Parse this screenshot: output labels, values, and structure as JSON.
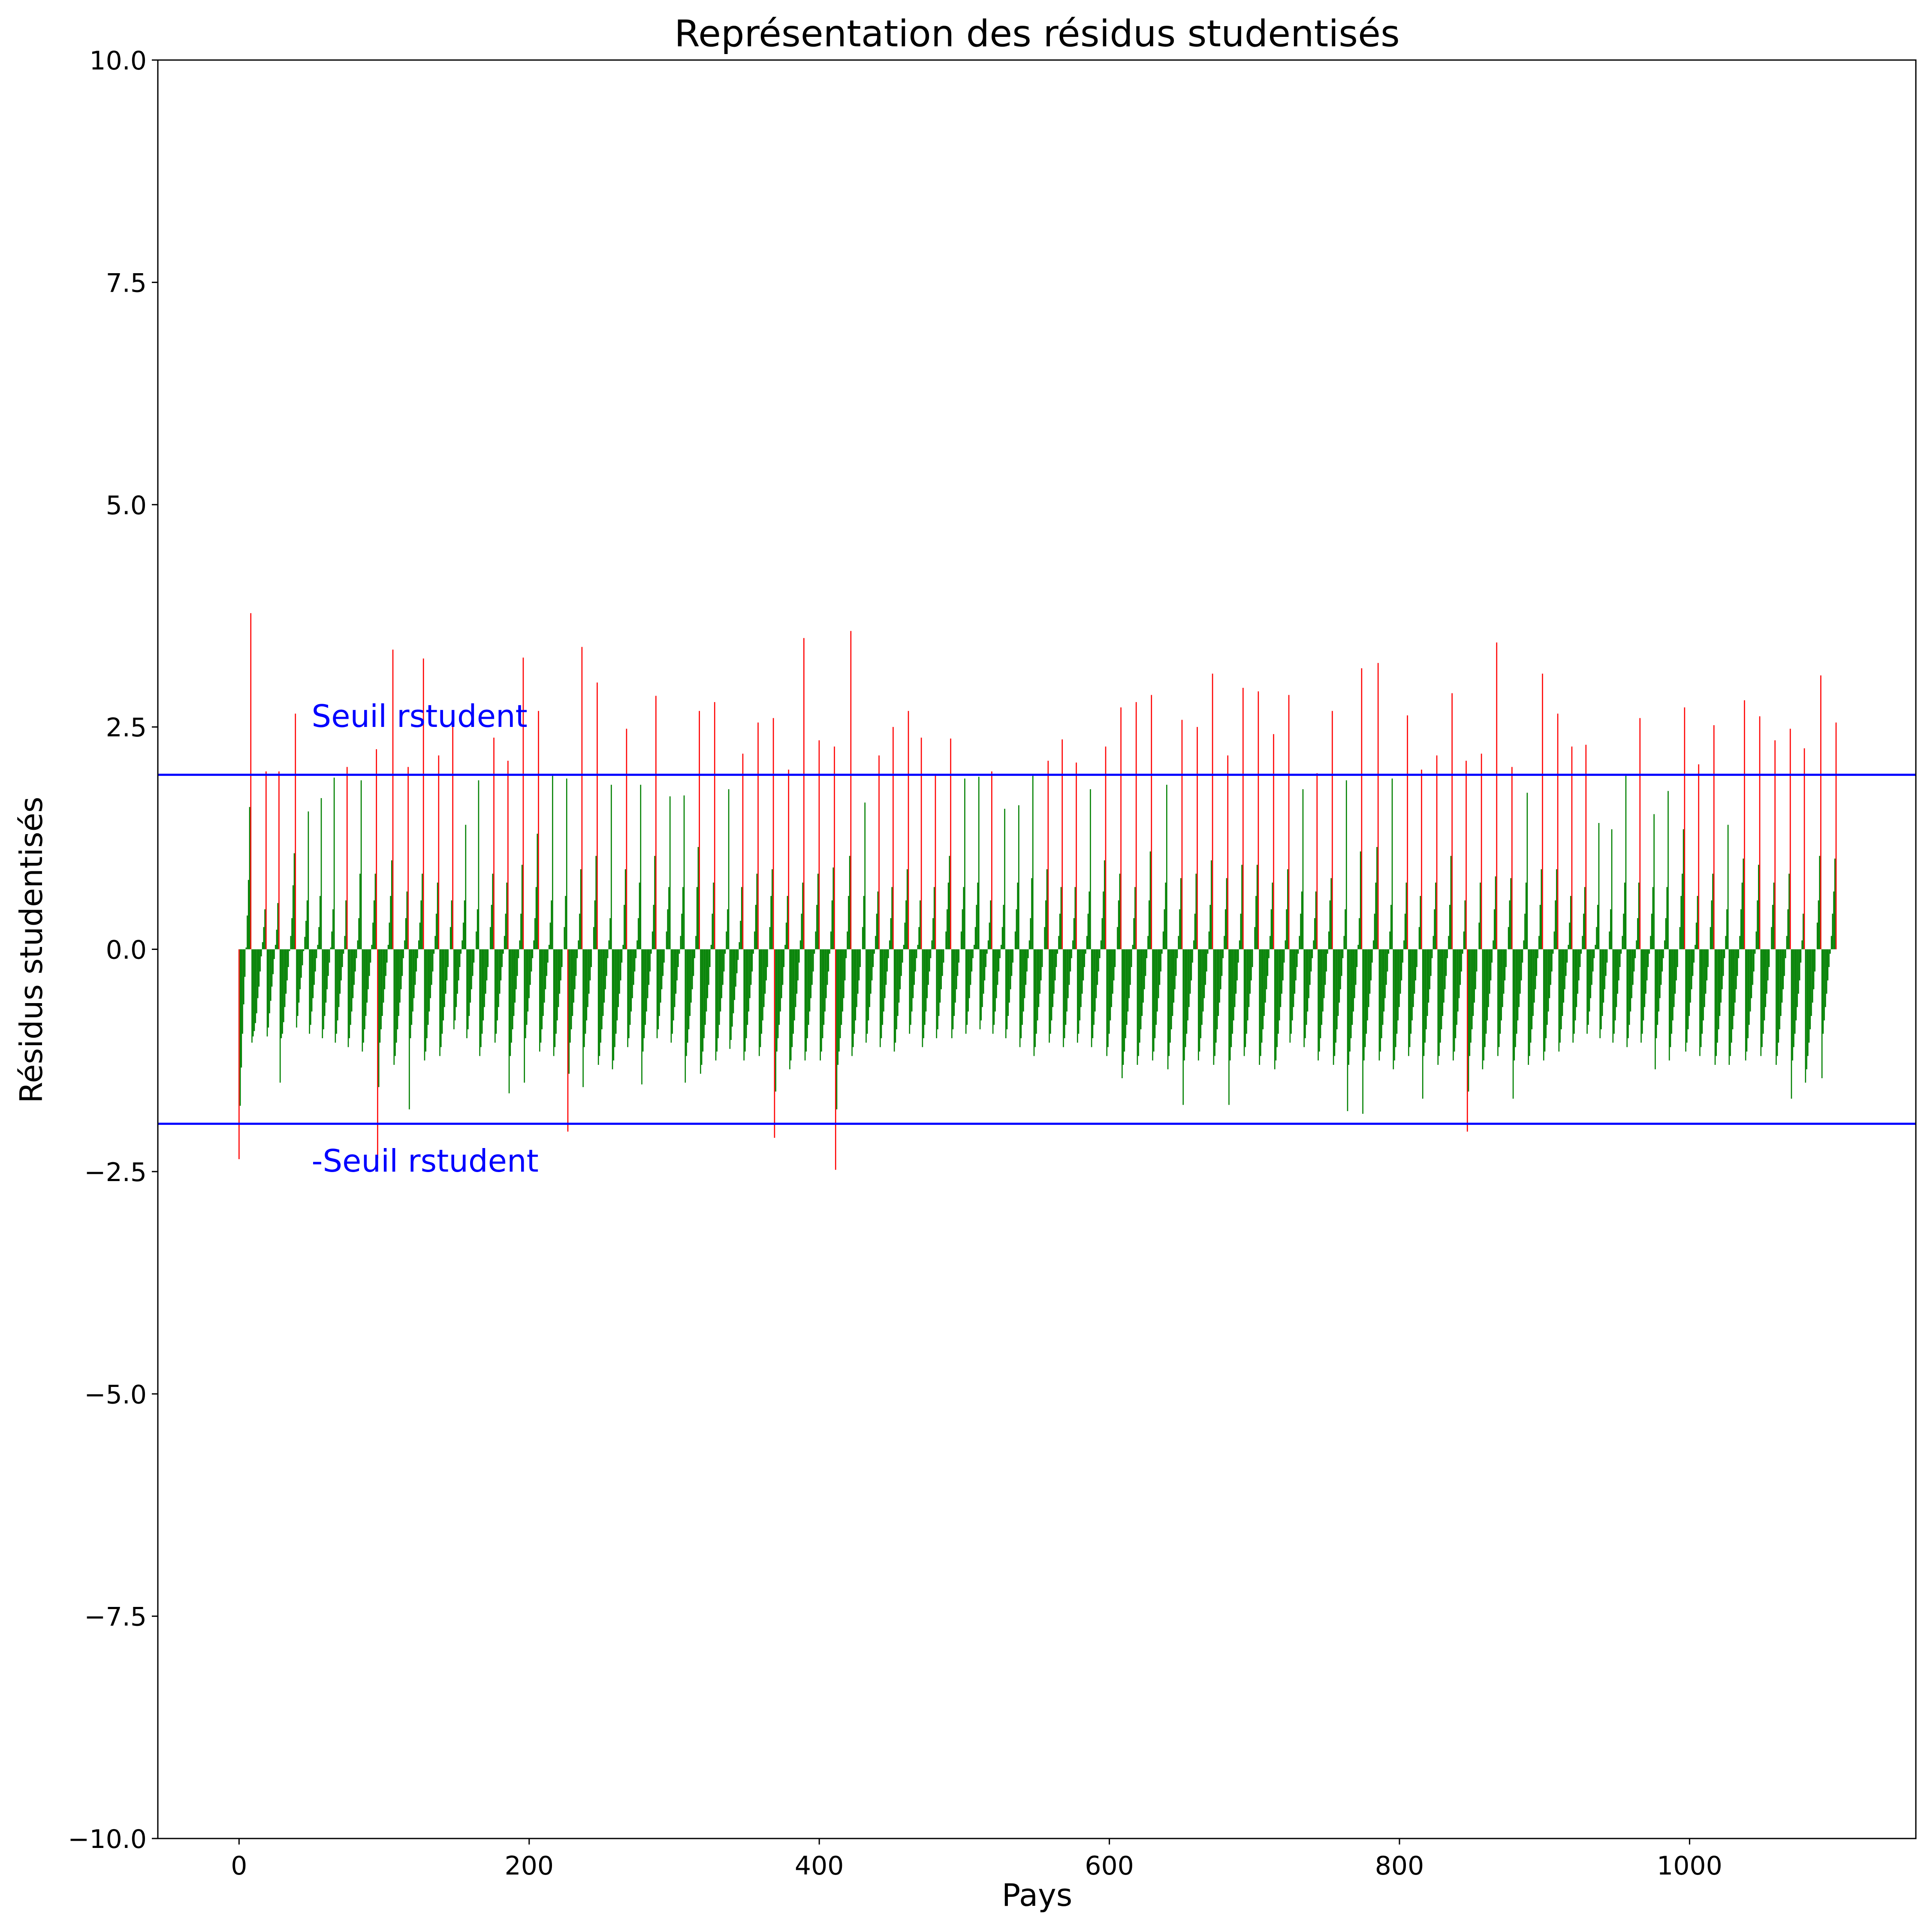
{
  "chart_data": {
    "type": "bar",
    "title": "Représentation des résidus studentisés",
    "xlabel": "Pays",
    "ylabel": "Résidus studentisés",
    "xlim": [
      -56,
      1156
    ],
    "ylim": [
      -10,
      10
    ],
    "xticks": [
      0,
      200,
      400,
      600,
      800,
      1000
    ],
    "xtick_labels": [
      "0",
      "200",
      "400",
      "600",
      "800",
      "1000"
    ],
    "yticks": [
      -10,
      -7.5,
      -5,
      -2.5,
      0,
      2.5,
      5,
      7.5,
      10
    ],
    "ytick_labels": [
      "−10.0",
      "−7.5",
      "−5.0",
      "−2.5",
      "0.0",
      "2.5",
      "5.0",
      "7.5",
      "10.0"
    ],
    "grid": false,
    "threshold": 1.9624,
    "threshold_labels": [
      "Seuil rstudent",
      "-Seuil rstudent"
    ],
    "threshold_color": "#0000ff",
    "colors": {
      "within": "#008000",
      "outside": "#ff0000"
    },
    "n_points": 1102,
    "residuals": [
      -2.36,
      -1.76,
      -1.33,
      -0.95,
      -0.62,
      -0.31,
      0.02,
      0.38,
      0.78,
      1.6,
      3.78,
      -1.05,
      -0.98,
      -0.92,
      -0.83,
      -0.72,
      -0.55,
      -0.42,
      -0.25,
      -0.08,
      0.08,
      0.25,
      0.45,
      2.0,
      -0.98,
      -0.88,
      -0.72,
      -0.58,
      -0.42,
      -0.28,
      -0.11,
      0.05,
      0.22,
      0.52,
      2.0,
      -1.5,
      -1.0,
      -0.95,
      -0.82,
      -0.65,
      -0.5,
      -0.35,
      -0.2,
      -0.02,
      0.15,
      0.35,
      0.72,
      1.08,
      2.65,
      -0.88,
      -0.75,
      -0.6,
      -0.45,
      -0.32,
      -0.18,
      -0.02,
      0.14,
      0.32,
      0.55,
      1.55,
      -0.95,
      -0.85,
      -0.7,
      -0.55,
      -0.4,
      -0.25,
      -0.1,
      0.05,
      0.25,
      0.6,
      1.7,
      -1.0,
      -0.9,
      -0.75,
      -0.6,
      -0.45,
      -0.3,
      -0.15,
      0.02,
      0.2,
      0.45,
      1.93,
      -1.05,
      -0.95,
      -0.8,
      -0.65,
      -0.5,
      -0.35,
      -0.2,
      -0.05,
      0.15,
      0.55,
      2.05,
      -1.1,
      -1.0,
      -0.85,
      -0.7,
      -0.55,
      -0.4,
      -0.25,
      -0.1,
      0.1,
      0.35,
      0.85,
      1.9,
      -1.15,
      -1.05,
      -0.9,
      -0.75,
      -0.6,
      -0.45,
      -0.3,
      -0.15,
      0.05,
      0.3,
      0.55,
      0.85,
      2.25,
      -2.35,
      -1.55,
      -1.05,
      -0.9,
      -0.75,
      -0.6,
      -0.45,
      -0.3,
      -0.15,
      0.05,
      0.3,
      0.6,
      1.0,
      3.37,
      -1.3,
      -1.2,
      -1.05,
      -0.9,
      -0.75,
      -0.6,
      -0.45,
      -0.3,
      -0.1,
      0.1,
      0.35,
      0.65,
      2.05,
      -1.8,
      -1.0,
      -0.85,
      -0.7,
      -0.55,
      -0.4,
      -0.25,
      -0.1,
      0.1,
      0.3,
      0.55,
      0.85,
      3.27,
      -1.25,
      -1.15,
      -1.0,
      -0.85,
      -0.7,
      -0.55,
      -0.4,
      -0.25,
      -0.05,
      0.15,
      0.4,
      0.75,
      2.18,
      -1.2,
      -1.1,
      -0.95,
      -0.8,
      -0.65,
      -0.5,
      -0.35,
      -0.2,
      0.0,
      0.25,
      0.55,
      2.5,
      -0.9,
      -0.8,
      -0.65,
      -0.5,
      -0.35,
      -0.2,
      -0.05,
      0.1,
      0.3,
      0.55,
      1.4,
      -1.0,
      -0.9,
      -0.75,
      -0.6,
      -0.45,
      -0.3,
      -0.15,
      0.0,
      0.2,
      0.45,
      1.9,
      -1.2,
      -1.1,
      -0.95,
      -0.8,
      -0.65,
      -0.5,
      -0.35,
      -0.2,
      0.0,
      0.25,
      0.5,
      0.85,
      2.38,
      -1.05,
      -0.95,
      -0.8,
      -0.65,
      -0.5,
      -0.35,
      -0.2,
      -0.05,
      0.15,
      0.4,
      0.75,
      2.12,
      -1.62,
      -1.2,
      -1.05,
      -0.9,
      -0.75,
      -0.6,
      -0.45,
      -0.3,
      -0.1,
      0.1,
      0.4,
      0.95,
      3.28,
      -1.5,
      -1.0,
      -0.85,
      -0.7,
      -0.55,
      -0.4,
      -0.25,
      -0.1,
      0.1,
      0.35,
      0.7,
      1.3,
      2.68,
      -1.15,
      -1.05,
      -0.9,
      -0.75,
      -0.6,
      -0.45,
      -0.3,
      -0.15,
      0.05,
      0.3,
      0.55,
      1.95,
      -1.2,
      -1.1,
      -0.95,
      -0.8,
      -0.65,
      -0.5,
      -0.35,
      -0.2,
      0.0,
      0.25,
      0.6,
      1.92,
      -2.05,
      -1.4,
      -1.05,
      -0.9,
      -0.75,
      -0.6,
      -0.45,
      -0.3,
      -0.1,
      0.1,
      0.4,
      0.9,
      3.4,
      -1.55,
      -1.1,
      -0.95,
      -0.8,
      -0.65,
      -0.5,
      -0.35,
      -0.2,
      0.0,
      0.25,
      0.55,
      1.05,
      3.0,
      -1.3,
      -1.2,
      -1.05,
      -0.9,
      -0.75,
      -0.6,
      -0.45,
      -0.3,
      -0.1,
      0.1,
      0.35,
      1.85,
      -1.35,
      -1.25,
      -1.1,
      -0.95,
      -0.8,
      -0.65,
      -0.5,
      -0.35,
      -0.15,
      0.05,
      0.5,
      0.9,
      2.48,
      -1.1,
      -1.0,
      -0.85,
      -0.7,
      -0.55,
      -0.4,
      -0.25,
      -0.1,
      0.1,
      0.35,
      0.75,
      1.85,
      -1.52,
      -1.15,
      -1.0,
      -0.85,
      -0.7,
      -0.55,
      -0.4,
      -0.25,
      -0.05,
      0.2,
      0.5,
      1.05,
      2.85,
      -1.0,
      -0.9,
      -0.75,
      -0.6,
      -0.45,
      -0.3,
      -0.15,
      0.0,
      0.2,
      0.45,
      0.7,
      1.72,
      -1.05,
      -0.95,
      -0.8,
      -0.65,
      -0.5,
      -0.35,
      -0.2,
      -0.05,
      0.15,
      0.4,
      0.7,
      1.73,
      -1.5,
      -1.2,
      -1.05,
      -0.9,
      -0.75,
      -0.6,
      -0.45,
      -0.3,
      -0.1,
      0.15,
      0.7,
      1.15,
      2.68,
      -1.4,
      -1.3,
      -1.15,
      -1.0,
      -0.85,
      -0.7,
      -0.55,
      -0.4,
      -0.2,
      0.05,
      0.4,
      0.75,
      2.78,
      -1.25,
      -1.15,
      -1.0,
      -0.85,
      -0.7,
      -0.55,
      -0.4,
      -0.25,
      -0.05,
      0.2,
      0.45,
      1.8,
      -1.12,
      -1.02,
      -0.87,
      -0.72,
      -0.57,
      -0.42,
      -0.27,
      -0.12,
      0.08,
      0.32,
      0.7,
      2.2,
      -1.25,
      -1.15,
      -1.0,
      -0.85,
      -0.7,
      -0.55,
      -0.4,
      -0.25,
      -0.05,
      0.2,
      0.5,
      0.85,
      2.55,
      -1.2,
      -1.1,
      -0.95,
      -0.8,
      -0.65,
      -0.5,
      -0.35,
      -0.2,
      0.0,
      0.25,
      0.6,
      0.9,
      2.6,
      -2.12,
      -1.6,
      -1.15,
      -1.0,
      -0.85,
      -0.7,
      -0.55,
      -0.4,
      -0.2,
      0.05,
      0.3,
      0.6,
      2.02,
      -1.35,
      -1.25,
      -1.1,
      -0.95,
      -0.8,
      -0.65,
      -0.5,
      -0.35,
      -0.15,
      0.1,
      0.4,
      0.75,
      3.5,
      -1.25,
      -1.15,
      -1.0,
      -0.85,
      -0.7,
      -0.55,
      -0.4,
      -0.25,
      -0.05,
      0.2,
      0.5,
      0.85,
      2.35,
      -1.25,
      -1.15,
      -1.0,
      -0.85,
      -0.7,
      -0.55,
      -0.4,
      -0.25,
      -0.05,
      0.2,
      0.55,
      0.92,
      2.28,
      -2.48,
      -1.8,
      -1.3,
      -1.15,
      -1.0,
      -0.85,
      -0.7,
      -0.55,
      -0.35,
      -0.1,
      0.2,
      0.6,
      1.05,
      3.58,
      -1.2,
      -1.1,
      -0.95,
      -0.8,
      -0.65,
      -0.5,
      -0.35,
      -0.2,
      0.0,
      0.25,
      0.6,
      1.65,
      -1.05,
      -0.95,
      -0.8,
      -0.65,
      -0.5,
      -0.35,
      -0.2,
      -0.05,
      0.15,
      0.4,
      0.65,
      2.18,
      -1.1,
      -1.0,
      -0.85,
      -0.7,
      -0.55,
      -0.4,
      -0.25,
      -0.1,
      0.1,
      0.35,
      0.7,
      2.5,
      -1.15,
      -1.05,
      -0.9,
      -0.75,
      -0.6,
      -0.45,
      -0.3,
      -0.15,
      0.05,
      0.3,
      0.55,
      0.9,
      2.68,
      -0.95,
      -0.85,
      -0.7,
      -0.55,
      -0.4,
      -0.25,
      -0.1,
      0.05,
      0.25,
      0.55,
      2.38,
      -1.1,
      -1.0,
      -0.85,
      -0.7,
      -0.55,
      -0.4,
      -0.25,
      -0.1,
      0.1,
      0.35,
      0.7,
      1.97,
      -1.0,
      -0.9,
      -0.75,
      -0.6,
      -0.45,
      -0.3,
      -0.15,
      0.0,
      0.2,
      0.45,
      0.75,
      1.05,
      2.37,
      -1.0,
      -0.9,
      -0.75,
      -0.6,
      -0.45,
      -0.3,
      -0.15,
      0.0,
      0.2,
      0.45,
      0.7,
      1.92,
      -0.95,
      -0.85,
      -0.7,
      -0.55,
      -0.4,
      -0.25,
      -0.1,
      0.05,
      0.25,
      0.5,
      0.75,
      1.94,
      -0.9,
      -0.8,
      -0.65,
      -0.5,
      -0.35,
      -0.2,
      -0.05,
      0.1,
      0.3,
      0.55,
      2.0,
      -0.95,
      -0.85,
      -0.7,
      -0.55,
      -0.4,
      -0.25,
      -0.1,
      0.05,
      0.25,
      0.5,
      1.58,
      -1.0,
      -0.9,
      -0.75,
      -0.6,
      -0.45,
      -0.3,
      -0.15,
      0.0,
      0.2,
      0.45,
      0.75,
      1.62,
      -1.1,
      -1.0,
      -0.85,
      -0.7,
      -0.55,
      -0.4,
      -0.25,
      -0.1,
      0.1,
      0.35,
      0.8,
      1.95,
      -1.2,
      -1.1,
      -0.95,
      -0.8,
      -0.65,
      -0.5,
      -0.35,
      -0.2,
      0.0,
      0.25,
      0.55,
      0.9,
      2.12,
      -1.05,
      -0.95,
      -0.8,
      -0.65,
      -0.5,
      -0.35,
      -0.2,
      -0.05,
      0.15,
      0.4,
      0.7,
      2.36,
      -1.1,
      -1.0,
      -0.85,
      -0.7,
      -0.55,
      -0.4,
      -0.25,
      -0.1,
      0.1,
      0.35,
      0.7,
      2.1,
      -1.05,
      -0.95,
      -0.8,
      -0.65,
      -0.5,
      -0.35,
      -0.2,
      -0.05,
      0.15,
      0.4,
      0.65,
      1.8,
      -1.1,
      -1.0,
      -0.85,
      -0.7,
      -0.55,
      -0.4,
      -0.25,
      -0.1,
      0.1,
      0.35,
      0.65,
      1.0,
      2.28,
      -1.2,
      -1.1,
      -0.95,
      -0.8,
      -0.65,
      -0.5,
      -0.35,
      -0.2,
      0.0,
      0.25,
      0.55,
      0.85,
      2.72,
      -1.45,
      -1.3,
      -1.15,
      -1.0,
      -0.85,
      -0.7,
      -0.55,
      -0.4,
      -0.2,
      0.05,
      0.35,
      0.7,
      2.78,
      -1.3,
      -1.2,
      -1.05,
      -0.9,
      -0.75,
      -0.6,
      -0.45,
      -0.3,
      -0.1,
      0.15,
      0.55,
      1.1,
      2.86,
      -1.25,
      -1.15,
      -1.0,
      -0.85,
      -0.7,
      -0.55,
      -0.4,
      -0.25,
      -0.05,
      0.2,
      0.45,
      0.75,
      1.85,
      -1.35,
      -1.2,
      -1.05,
      -0.9,
      -0.75,
      -0.6,
      -0.45,
      -0.3,
      -0.1,
      0.15,
      0.45,
      0.8,
      2.58,
      -1.75,
      -1.25,
      -1.1,
      -0.95,
      -0.8,
      -0.65,
      -0.5,
      -0.35,
      -0.15,
      0.1,
      0.4,
      0.85,
      2.5,
      -1.25,
      -1.15,
      -1.0,
      -0.85,
      -0.7,
      -0.55,
      -0.4,
      -0.25,
      -0.05,
      0.2,
      0.5,
      1.0,
      3.1,
      -1.3,
      -1.2,
      -1.05,
      -0.9,
      -0.75,
      -0.6,
      -0.45,
      -0.3,
      -0.1,
      0.15,
      0.45,
      0.8,
      2.18,
      -1.75,
      -1.25,
      -1.1,
      -0.95,
      -0.8,
      -0.65,
      -0.5,
      -0.35,
      -0.15,
      0.1,
      0.4,
      0.95,
      2.94,
      -1.2,
      -1.1,
      -0.95,
      -0.8,
      -0.65,
      -0.5,
      -0.35,
      -0.2,
      0.0,
      0.25,
      0.6,
      0.95,
      2.9,
      -1.3,
      -1.2,
      -1.05,
      -0.9,
      -0.75,
      -0.6,
      -0.45,
      -0.3,
      -0.1,
      0.15,
      0.45,
      0.75,
      2.42,
      -1.35,
      -1.25,
      -1.1,
      -0.95,
      -0.8,
      -0.65,
      -0.5,
      -0.35,
      -0.15,
      0.1,
      0.45,
      0.9,
      2.86,
      -1.05,
      -0.95,
      -0.8,
      -0.65,
      -0.5,
      -0.35,
      -0.2,
      -0.05,
      0.15,
      0.4,
      0.65,
      1.8,
      -1.1,
      -1.0,
      -0.85,
      -0.7,
      -0.55,
      -0.4,
      -0.25,
      -0.1,
      0.1,
      0.35,
      0.65,
      1.98,
      -1.25,
      -1.15,
      -1.0,
      -0.85,
      -0.7,
      -0.55,
      -0.4,
      -0.25,
      -0.05,
      0.2,
      0.55,
      0.8,
      2.68,
      -1.3,
      -1.2,
      -1.05,
      -0.9,
      -0.75,
      -0.6,
      -0.45,
      -0.3,
      -0.1,
      0.15,
      0.45,
      1.9,
      -1.82,
      -1.3,
      -1.15,
      -1.0,
      -0.85,
      -0.7,
      -0.55,
      -0.4,
      -0.2,
      0.05,
      0.35,
      1.1,
      3.16,
      -1.85,
      -1.25,
      -1.1,
      -0.95,
      -0.8,
      -0.65,
      -0.5,
      -0.35,
      -0.15,
      0.1,
      0.4,
      0.75,
      1.15,
      3.22,
      -1.25,
      -1.15,
      -1.0,
      -0.85,
      -0.7,
      -0.55,
      -0.4,
      -0.25,
      -0.05,
      0.2,
      0.5,
      1.92,
      -1.35,
      -1.25,
      -1.1,
      -0.95,
      -0.8,
      -0.65,
      -0.5,
      -0.35,
      -0.15,
      0.1,
      0.4,
      0.75,
      2.63,
      -1.2,
      -1.1,
      -0.95,
      -0.8,
      -0.65,
      -0.5,
      -0.35,
      -0.2,
      0.0,
      0.25,
      0.6,
      2.02,
      -1.68,
      -1.2,
      -1.05,
      -0.9,
      -0.75,
      -0.6,
      -0.45,
      -0.3,
      -0.1,
      0.15,
      0.45,
      0.75,
      2.18,
      -1.3,
      -1.2,
      -1.05,
      -0.9,
      -0.75,
      -0.6,
      -0.45,
      -0.3,
      -0.1,
      0.15,
      0.5,
      1.05,
      2.88,
      -1.25,
      -1.15,
      -1.0,
      -0.85,
      -0.7,
      -0.55,
      -0.4,
      -0.25,
      -0.05,
      0.2,
      0.55,
      2.12,
      -2.05,
      -1.6,
      -1.2,
      -1.05,
      -0.9,
      -0.75,
      -0.6,
      -0.45,
      -0.25,
      0.0,
      0.3,
      0.75,
      2.2,
      -1.35,
      -1.25,
      -1.1,
      -0.95,
      -0.8,
      -0.65,
      -0.5,
      -0.35,
      -0.15,
      0.1,
      0.45,
      0.82,
      3.45,
      -1.2,
      -1.1,
      -0.95,
      -0.8,
      -0.65,
      -0.5,
      -0.35,
      -0.2,
      0.0,
      0.25,
      0.55,
      0.8,
      2.05,
      -1.68,
      -1.25,
      -1.1,
      -0.95,
      -0.8,
      -0.65,
      -0.5,
      -0.35,
      -0.15,
      0.1,
      0.4,
      0.75,
      1.76,
      -1.3,
      -1.2,
      -1.05,
      -0.9,
      -0.75,
      -0.6,
      -0.45,
      -0.3,
      -0.1,
      0.15,
      0.5,
      0.9,
      3.1,
      -1.25,
      -1.15,
      -1.0,
      -0.85,
      -0.7,
      -0.55,
      -0.4,
      -0.25,
      -0.05,
      0.2,
      0.55,
      0.9,
      2.65,
      -1.15,
      -1.05,
      -0.9,
      -0.75,
      -0.6,
      -0.45,
      -0.3,
      -0.15,
      0.05,
      0.3,
      0.6,
      2.28,
      -1.05,
      -0.95,
      -0.8,
      -0.65,
      -0.5,
      -0.35,
      -0.2,
      -0.05,
      0.15,
      0.4,
      0.7,
      2.3,
      -0.95,
      -0.85,
      -0.7,
      -0.55,
      -0.4,
      -0.25,
      -0.1,
      0.05,
      0.25,
      0.5,
      1.42,
      -1.0,
      -0.9,
      -0.75,
      -0.6,
      -0.45,
      -0.3,
      -0.15,
      0.0,
      0.2,
      0.45,
      1.35,
      -1.05,
      -0.95,
      -0.8,
      -0.65,
      -0.5,
      -0.35,
      -0.2,
      -0.05,
      0.15,
      0.4,
      0.75,
      1.95,
      -1.1,
      -1.0,
      -0.85,
      -0.7,
      -0.55,
      -0.4,
      -0.25,
      -0.1,
      0.1,
      0.35,
      0.75,
      2.6,
      -1.05,
      -0.95,
      -0.8,
      -0.65,
      -0.5,
      -0.35,
      -0.2,
      -0.05,
      0.15,
      0.4,
      0.7,
      1.52,
      -1.35,
      -1.0,
      -0.85,
      -0.7,
      -0.55,
      -0.4,
      -0.25,
      -0.1,
      0.1,
      0.35,
      0.7,
      1.78,
      -1.25,
      -1.1,
      -0.95,
      -0.8,
      -0.65,
      -0.5,
      -0.35,
      -0.2,
      0.0,
      0.25,
      0.6,
      0.85,
      1.35,
      2.72,
      -1.15,
      -1.05,
      -0.9,
      -0.75,
      -0.6,
      -0.45,
      -0.3,
      -0.15,
      0.05,
      0.3,
      0.6,
      2.08,
      -1.2,
      -1.1,
      -0.95,
      -0.8,
      -0.65,
      -0.5,
      -0.35,
      -0.2,
      0.0,
      0.25,
      0.55,
      0.85,
      2.52,
      -1.3,
      -1.2,
      -1.05,
      -0.9,
      -0.75,
      -0.6,
      -0.45,
      -0.3,
      -0.1,
      0.15,
      0.45,
      1.4,
      -1.3,
      -1.2,
      -1.05,
      -0.9,
      -0.75,
      -0.6,
      -0.45,
      -0.3,
      -0.1,
      0.15,
      0.45,
      0.75,
      1.02,
      2.8,
      -1.25,
      -1.15,
      -1.0,
      -0.85,
      -0.7,
      -0.55,
      -0.4,
      -0.25,
      -0.05,
      0.2,
      0.55,
      0.95,
      2.62,
      -1.2,
      -1.1,
      -0.95,
      -0.8,
      -0.65,
      -0.5,
      -0.35,
      -0.2,
      0.0,
      0.25,
      0.5,
      0.75,
      2.35,
      -1.3,
      -1.2,
      -1.05,
      -0.9,
      -0.75,
      -0.6,
      -0.45,
      -0.3,
      -0.1,
      0.15,
      0.45,
      0.85,
      2.48,
      -1.68,
      -1.25,
      -1.1,
      -0.95,
      -0.8,
      -0.65,
      -0.5,
      -0.35,
      -0.15,
      0.1,
      0.4,
      2.26,
      -1.5,
      -1.35,
      -1.2,
      -1.05,
      -0.9,
      -0.75,
      -0.6,
      -0.45,
      -0.25,
      0.0,
      0.3,
      0.55,
      1.05,
      3.08,
      -1.45,
      -0.95,
      -0.8,
      -0.65,
      -0.5,
      -0.35,
      -0.2,
      -0.05,
      0.15,
      0.4,
      0.65,
      1.02,
      2.55
    ]
  }
}
